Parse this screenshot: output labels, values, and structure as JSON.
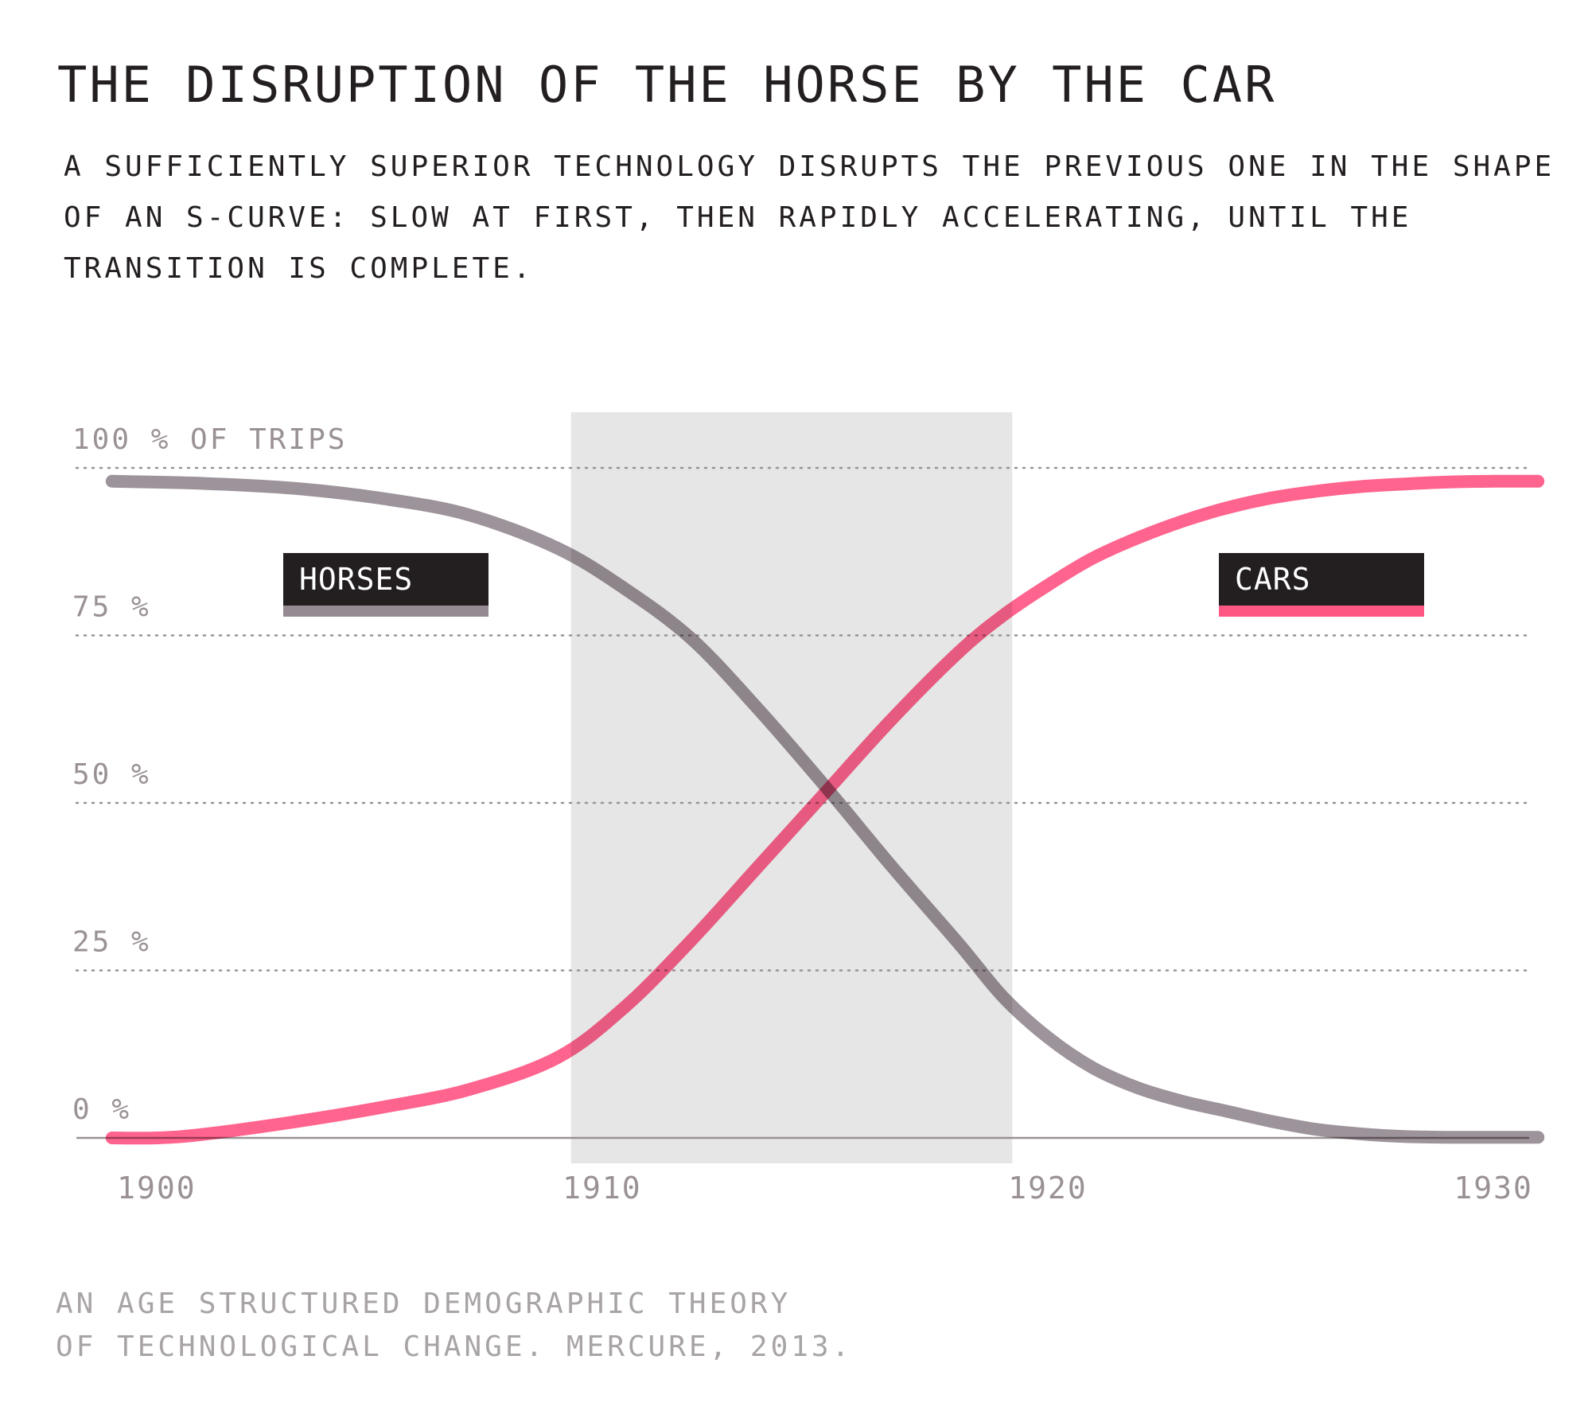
{
  "colors": {
    "text_dark": "#231f20",
    "axis_text": "#9a9194",
    "source_text": "#a8a4a6",
    "horses": "#958a91",
    "cars": "#ff5784",
    "highlight_band": "#e6e6e6",
    "gridline": "#9a9194",
    "baseline": "#9a9194"
  },
  "chart_data": {
    "type": "line",
    "title": "THE DISRUPTION OF THE HORSE BY THE CAR",
    "subtitle": "A SUFFICIENTLY SUPERIOR TECHNOLOGY DISRUPTS THE PREVIOUS ONE IN THE SHAPE OF AN S-CURVE: SLOW AT FIRST, THEN RAPIDLY ACCELERATING, UNTIL THE TRANSITION IS COMPLETE.",
    "ylabel": "100 % OF TRIPS",
    "xlim": [
      1898.2,
      1930.8
    ],
    "ylim": [
      0,
      100
    ],
    "grid": "dotted horizontal",
    "x_ticks": [
      {
        "value": 1900,
        "label": "1900"
      },
      {
        "value": 1910,
        "label": "1910"
      },
      {
        "value": 1920,
        "label": "1920"
      },
      {
        "value": 1930,
        "label": "1930"
      }
    ],
    "y_ticks": [
      {
        "value": 100,
        "label": "100 % OF TRIPS"
      },
      {
        "value": 75,
        "label": "75 %"
      },
      {
        "value": 50,
        "label": "50 %"
      },
      {
        "value": 25,
        "label": "25 %"
      },
      {
        "value": 0,
        "label": "0 %"
      }
    ],
    "highlight_band": {
      "x_start": 1909.3,
      "x_end": 1919.2
    },
    "series": [
      {
        "name": "HORSES",
        "color_key": "horses",
        "x": [
          1899,
          1901,
          1903,
          1905,
          1907,
          1909,
          1910.5,
          1912,
          1913.5,
          1915,
          1916.5,
          1918,
          1919,
          1920,
          1921,
          1922,
          1923,
          1924,
          1925,
          1926,
          1927,
          1928,
          1929,
          1930,
          1931
        ],
        "y": [
          98,
          97.7,
          97,
          95.5,
          93,
          88,
          82,
          74.5,
          64,
          52.5,
          40.5,
          29,
          21,
          15,
          10.5,
          7.5,
          5.5,
          4,
          2.5,
          1.3,
          0.6,
          0.2,
          0.1,
          0.1,
          0.1
        ]
      },
      {
        "name": "CARS",
        "color_key": "cars",
        "x": [
          1899,
          1900,
          1901,
          1903,
          1905,
          1907,
          1909,
          1910.5,
          1912,
          1913.5,
          1915,
          1916.5,
          1918,
          1919,
          1920,
          1921,
          1922,
          1923,
          1924,
          1925,
          1926,
          1927,
          1928,
          1929,
          1930,
          1931
        ],
        "y": [
          0,
          0,
          0.5,
          2.3,
          4.5,
          7.2,
          12,
          19.5,
          29.5,
          40.5,
          51.5,
          62.5,
          72.5,
          78,
          82.5,
          86.5,
          89.5,
          92,
          94,
          95.5,
          96.5,
          97.2,
          97.6,
          97.9,
          98,
          98
        ]
      }
    ],
    "legend": [
      {
        "label": "HORSES",
        "color_key": "horses",
        "placement": "upper-left"
      },
      {
        "label": "CARS",
        "color_key": "cars",
        "placement": "upper-right"
      }
    ]
  },
  "source": {
    "line1": "AN AGE STRUCTURED DEMOGRAPHIC THEORY",
    "line2": "OF TECHNOLOGICAL CHANGE. MERCURE, 2013."
  }
}
